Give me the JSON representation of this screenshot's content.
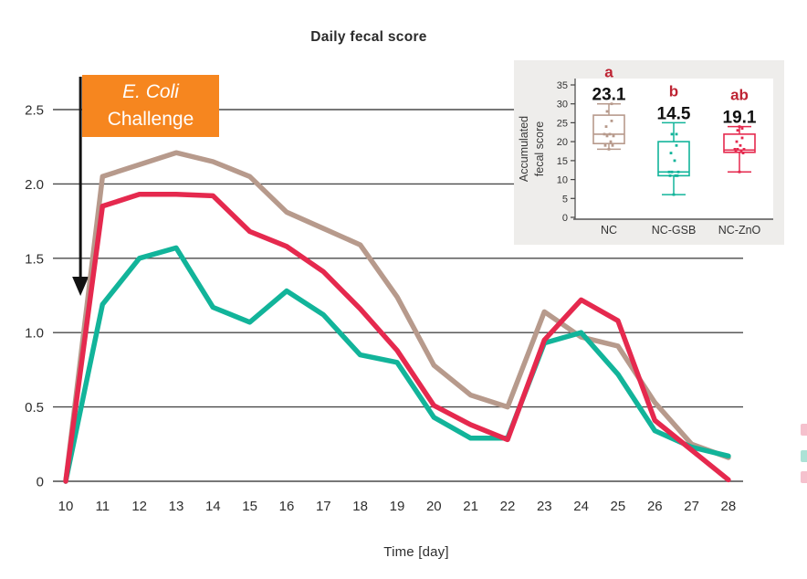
{
  "accent_colors": {
    "nc_tan": "#B79A8C",
    "nc_gsb_teal": "#12B49A",
    "nc_zno_red": "#E5294E",
    "annotation_orange": "#F6861F",
    "significance_letter_red": "#BE2433",
    "gridline_gray": "#4A4A4A",
    "inset_background": "#EEEDEB"
  },
  "annotation": {
    "line1": "E. Coli",
    "line2": "Challenge"
  },
  "edge_swatches": [
    {
      "name": "clipped-legend-swatch-pink-1",
      "color": "#F09FB2",
      "y": 464,
      "h": 13
    },
    {
      "name": "clipped-legend-swatch-teal",
      "color": "#7FD2C0",
      "y": 493,
      "h": 13
    },
    {
      "name": "clipped-legend-swatch-pink-2",
      "color": "#F09FB2",
      "y": 516,
      "h": 13
    }
  ],
  "chart_data": [
    {
      "id": "daily-fecal-score",
      "type": "line",
      "title": "Daily fecal score",
      "xlabel": "Time [day]",
      "ylabel": "",
      "grid": true,
      "legend_position": "none",
      "x": [
        10,
        11,
        12,
        13,
        14,
        15,
        16,
        17,
        18,
        19,
        20,
        21,
        22,
        23,
        24,
        25,
        26,
        27,
        28
      ],
      "xtick_labels": [
        "10",
        "11",
        "12",
        "13",
        "14",
        "15",
        "16",
        "17",
        "18",
        "19",
        "20",
        "21",
        "22",
        "23",
        "24",
        "25",
        "26",
        "27",
        "28"
      ],
      "ylim": [
        0,
        2.5
      ],
      "yticks": [
        0,
        0.5,
        1.0,
        1.5,
        2.0,
        2.5
      ],
      "ytick_labels": [
        "0",
        "0.5",
        "1.0",
        "1.5",
        "2.0",
        "2.5"
      ],
      "series": [
        {
          "name": "NC",
          "color": "#B79A8C",
          "values": [
            0,
            2.05,
            2.13,
            2.21,
            2.15,
            2.05,
            1.81,
            1.7,
            1.59,
            1.24,
            0.78,
            0.58,
            0.5,
            1.14,
            0.97,
            0.91,
            0.53,
            0.25,
            0.16
          ]
        },
        {
          "name": "NC-GSB",
          "color": "#12B49A",
          "values": [
            0,
            1.19,
            1.5,
            1.57,
            1.17,
            1.07,
            1.28,
            1.12,
            0.85,
            0.8,
            0.43,
            0.29,
            0.29,
            0.93,
            1.0,
            0.72,
            0.34,
            0.23,
            0.17
          ]
        },
        {
          "name": "NC-ZnO",
          "color": "#E5294E",
          "values": [
            0,
            1.85,
            1.93,
            1.93,
            1.92,
            1.68,
            1.58,
            1.41,
            1.16,
            0.88,
            0.51,
            0.38,
            0.28,
            0.95,
            1.22,
            1.08,
            0.41,
            0.21,
            0.01
          ]
        }
      ],
      "annotation": {
        "line1": "E. Coli",
        "line2": "Challenge",
        "arrow_day": 10.4
      }
    },
    {
      "id": "accumulated-fecal-score",
      "type": "boxplot",
      "ylabel_lines": [
        "Accumulated",
        "fecal score"
      ],
      "ylim": [
        0,
        35
      ],
      "yticks": [
        0,
        5,
        10,
        15,
        20,
        25,
        30,
        35
      ],
      "groups": [
        {
          "label": "NC",
          "letter": "a",
          "value": "23.1",
          "color": "#B79A8C",
          "whisker_low": 18,
          "q1": 19.5,
          "median": 22,
          "q3": 27,
          "whisker_high": 30,
          "points": [
            18,
            19,
            19,
            20,
            21.5,
            21.5,
            22,
            22,
            24,
            25.5,
            28,
            30
          ]
        },
        {
          "label": "NC-GSB",
          "letter": "b",
          "value": "14.5",
          "color": "#12B49A",
          "whisker_low": 6,
          "q1": 11,
          "median": 12,
          "q3": 20,
          "whisker_high": 25,
          "points": [
            6,
            11,
            11,
            11,
            12,
            12,
            12,
            15,
            17,
            19,
            22,
            22
          ]
        },
        {
          "label": "NC-ZnO",
          "letter": "ab",
          "value": "19.1",
          "color": "#E5294E",
          "whisker_low": 12,
          "q1": 17.2,
          "median": 17.8,
          "q3": 22,
          "whisker_high": 24,
          "points": [
            12,
            17,
            17.5,
            17.5,
            18,
            18,
            18,
            19,
            20,
            21,
            23,
            23.5,
            24
          ]
        }
      ]
    }
  ]
}
